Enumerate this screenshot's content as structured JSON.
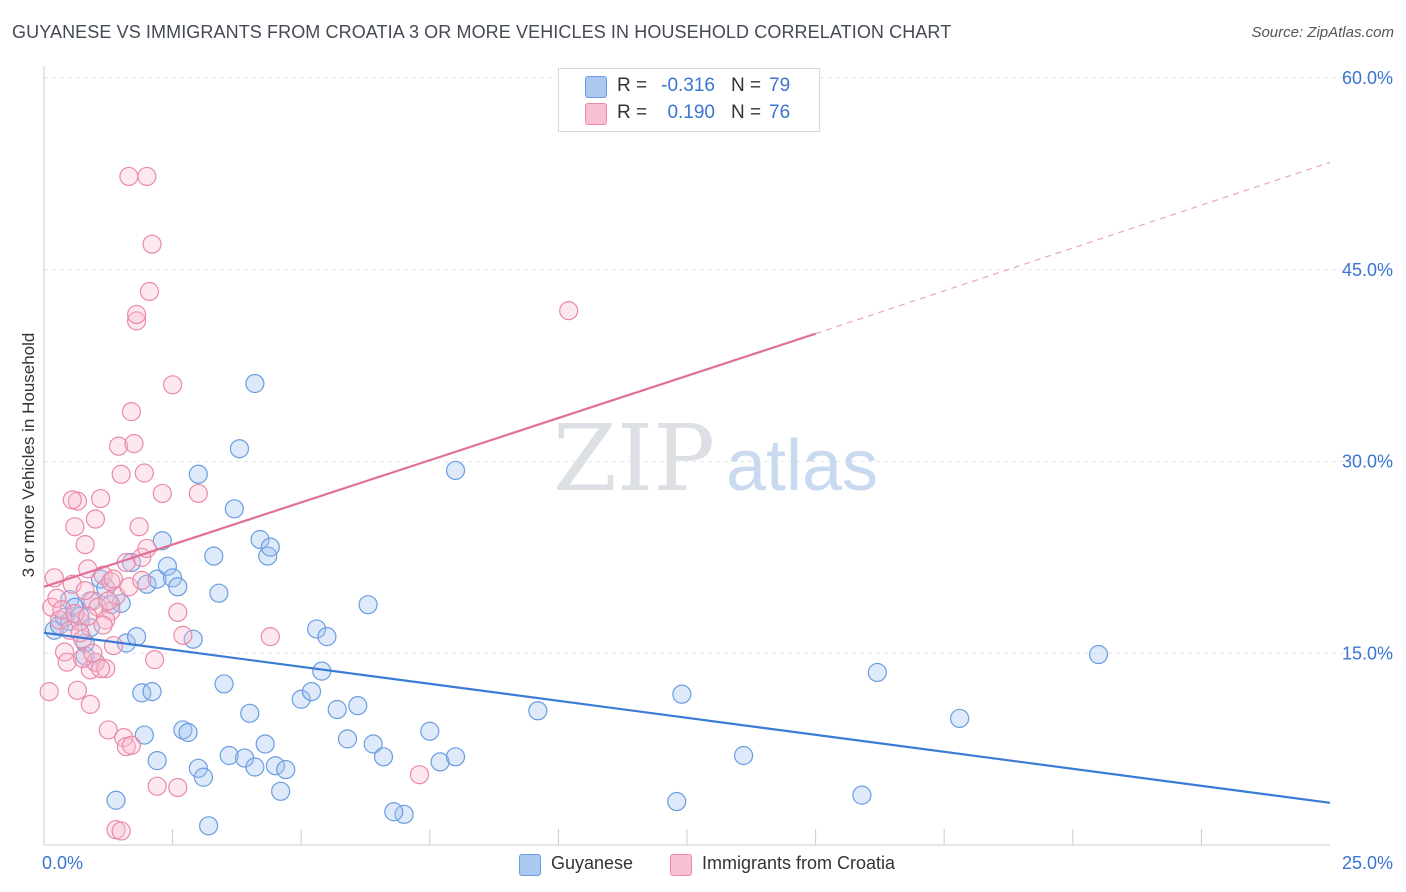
{
  "title": "GUYANESE VS IMMIGRANTS FROM CROATIA 3 OR MORE VEHICLES IN HOUSEHOLD CORRELATION CHART",
  "source": "Source: ZipAtlas.com",
  "watermark": {
    "zip": "ZIP",
    "atlas": "atlas"
  },
  "legend_top": {
    "rows": [
      {
        "r_label": "R =",
        "r_value": "-0.316",
        "n_label": "N =",
        "n_value": "79",
        "color": "#aac8f0",
        "border": "#6a9de0"
      },
      {
        "r_label": "R =",
        "r_value": "0.190",
        "n_label": "N =",
        "n_value": "76",
        "color": "#f8c0d2",
        "border": "#ea8aa8"
      }
    ]
  },
  "legend_bottom": [
    {
      "label": "Guyanese",
      "color": "#aac8f0",
      "border": "#6a9de0"
    },
    {
      "label": "Immigrants from Croatia",
      "color": "#f8c0d2",
      "border": "#ea8aa8"
    }
  ],
  "chart_data": {
    "type": "scatter",
    "title": "GUYANESE VS IMMIGRANTS FROM CROATIA 3 OR MORE VEHICLES IN HOUSEHOLD CORRELATION CHART",
    "xlabel": "",
    "ylabel": "3 or more Vehicles in Household",
    "xlim": [
      0,
      25
    ],
    "ylim": [
      0,
      60
    ],
    "x_tick_labels": [
      {
        "value": 0,
        "label": "0.0%"
      },
      {
        "value": 25,
        "label": "25.0%"
      }
    ],
    "y_tick_labels": [
      {
        "value": 15,
        "label": "15.0%"
      },
      {
        "value": 30,
        "label": "30.0%"
      },
      {
        "value": 45,
        "label": "45.0%"
      },
      {
        "value": 60,
        "label": "60.0%"
      }
    ],
    "x_minor_ticks": [
      2.5,
      5,
      7.5,
      10,
      12.5,
      15,
      17.5,
      20,
      22.5
    ],
    "grid": true,
    "series": [
      {
        "name": "Guyanese",
        "color": "#6a9de0",
        "fill": "rgba(160,195,240,0.35)",
        "trend": {
          "x0": 0,
          "y0": 16.6,
          "x1": 25,
          "y1": 3.3,
          "dashed_to": null
        },
        "points": [
          [
            0.2,
            16.8
          ],
          [
            0.3,
            17.2
          ],
          [
            0.4,
            17.8
          ],
          [
            0.5,
            19.2
          ],
          [
            0.5,
            17.5
          ],
          [
            0.6,
            18.6
          ],
          [
            0.7,
            17.9
          ],
          [
            0.8,
            14.8
          ],
          [
            0.8,
            15.8
          ],
          [
            0.9,
            19.1
          ],
          [
            1.0,
            14.3
          ],
          [
            1.1,
            20.8
          ],
          [
            1.2,
            20.1
          ],
          [
            1.3,
            18.8
          ],
          [
            1.5,
            18.9
          ],
          [
            1.6,
            15.8
          ],
          [
            1.7,
            22.1
          ],
          [
            1.8,
            16.3
          ],
          [
            1.9,
            11.9
          ],
          [
            1.95,
            8.6
          ],
          [
            2.0,
            20.4
          ],
          [
            2.1,
            12.0
          ],
          [
            2.2,
            20.8
          ],
          [
            2.3,
            23.8
          ],
          [
            2.4,
            21.8
          ],
          [
            2.5,
            20.9
          ],
          [
            2.6,
            20.2
          ],
          [
            2.7,
            9.0
          ],
          [
            2.8,
            8.8
          ],
          [
            2.9,
            16.1
          ],
          [
            3.0,
            6.0
          ],
          [
            3.1,
            5.3
          ],
          [
            3.2,
            1.5
          ],
          [
            3.3,
            22.6
          ],
          [
            3.4,
            19.7
          ],
          [
            3.5,
            12.6
          ],
          [
            3.6,
            7.0
          ],
          [
            3.7,
            26.3
          ],
          [
            3.8,
            31.0
          ],
          [
            3.9,
            6.8
          ],
          [
            4.0,
            10.3
          ],
          [
            4.1,
            6.1
          ],
          [
            4.2,
            23.9
          ],
          [
            4.3,
            7.9
          ],
          [
            4.35,
            22.6
          ],
          [
            4.4,
            23.3
          ],
          [
            4.5,
            6.2
          ],
          [
            4.6,
            4.2
          ],
          [
            4.7,
            5.9
          ],
          [
            5.0,
            11.4
          ],
          [
            5.2,
            12.0
          ],
          [
            5.3,
            16.9
          ],
          [
            5.4,
            13.6
          ],
          [
            5.5,
            16.3
          ],
          [
            5.7,
            10.6
          ],
          [
            5.9,
            8.3
          ],
          [
            6.1,
            10.9
          ],
          [
            6.3,
            18.8
          ],
          [
            6.4,
            7.9
          ],
          [
            6.6,
            6.9
          ],
          [
            7.0,
            2.4
          ],
          [
            7.5,
            8.9
          ],
          [
            7.7,
            6.5
          ],
          [
            8.0,
            29.3
          ],
          [
            9.6,
            10.5
          ],
          [
            12.4,
            11.8
          ],
          [
            13.6,
            7.0
          ],
          [
            16.2,
            13.5
          ],
          [
            17.8,
            9.9
          ],
          [
            20.5,
            14.9
          ],
          [
            3.0,
            29.0
          ],
          [
            1.4,
            3.5
          ],
          [
            0.9,
            17.0
          ],
          [
            4.1,
            36.1
          ],
          [
            2.2,
            6.6
          ],
          [
            6.8,
            2.6
          ],
          [
            8.0,
            6.9
          ],
          [
            15.9,
            3.9
          ],
          [
            12.3,
            3.4
          ]
        ]
      },
      {
        "name": "Immigrants from Croatia",
        "color": "#ea8aa8",
        "fill": "rgba(248,190,210,0.35)",
        "trend": {
          "x0": 0,
          "y0": 20.2,
          "x1": 15,
          "y1": 40.0,
          "dashed_to": {
            "x": 25,
            "y": 53.4
          }
        },
        "points": [
          [
            0.1,
            12.0
          ],
          [
            0.15,
            18.6
          ],
          [
            0.2,
            20.9
          ],
          [
            0.25,
            19.3
          ],
          [
            0.3,
            17.6
          ],
          [
            0.35,
            18.4
          ],
          [
            0.4,
            15.1
          ],
          [
            0.45,
            14.3
          ],
          [
            0.5,
            16.8
          ],
          [
            0.55,
            20.4
          ],
          [
            0.6,
            24.9
          ],
          [
            0.65,
            26.9
          ],
          [
            0.7,
            17.5
          ],
          [
            0.75,
            16.1
          ],
          [
            0.8,
            23.5
          ],
          [
            0.85,
            21.6
          ],
          [
            0.9,
            13.7
          ],
          [
            0.95,
            19.1
          ],
          [
            1.0,
            14.3
          ],
          [
            1.05,
            18.6
          ],
          [
            1.1,
            27.1
          ],
          [
            1.15,
            21.1
          ],
          [
            1.2,
            13.8
          ],
          [
            1.25,
            9.0
          ],
          [
            1.3,
            18.3
          ],
          [
            1.35,
            15.6
          ],
          [
            1.4,
            19.5
          ],
          [
            1.45,
            31.2
          ],
          [
            1.5,
            29.0
          ],
          [
            1.55,
            8.4
          ],
          [
            1.6,
            22.1
          ],
          [
            1.65,
            20.2
          ],
          [
            1.7,
            33.9
          ],
          [
            1.75,
            31.4
          ],
          [
            1.8,
            41.0
          ],
          [
            1.85,
            24.9
          ],
          [
            1.9,
            22.5
          ],
          [
            1.95,
            29.1
          ],
          [
            2.0,
            52.3
          ],
          [
            2.05,
            43.3
          ],
          [
            2.1,
            47.0
          ],
          [
            2.15,
            14.5
          ],
          [
            2.2,
            4.6
          ],
          [
            2.3,
            27.5
          ],
          [
            2.5,
            36.0
          ],
          [
            2.6,
            18.2
          ],
          [
            2.7,
            16.4
          ],
          [
            1.4,
            1.2
          ],
          [
            1.5,
            1.1
          ],
          [
            1.6,
            7.7
          ],
          [
            1.65,
            52.3
          ],
          [
            1.8,
            41.5
          ],
          [
            0.9,
            11.0
          ],
          [
            1.0,
            25.5
          ],
          [
            1.1,
            13.8
          ],
          [
            1.2,
            17.6
          ],
          [
            1.3,
            20.6
          ],
          [
            0.6,
            18.1
          ],
          [
            0.7,
            16.6
          ],
          [
            0.8,
            19.9
          ],
          [
            1.9,
            20.7
          ],
          [
            2.0,
            23.2
          ],
          [
            0.55,
            27.0
          ],
          [
            0.65,
            12.1
          ],
          [
            0.75,
            14.6
          ],
          [
            0.85,
            17.9
          ],
          [
            0.95,
            15.0
          ],
          [
            1.15,
            17.2
          ],
          [
            1.25,
            19.1
          ],
          [
            1.35,
            20.8
          ],
          [
            4.4,
            16.3
          ],
          [
            7.3,
            5.5
          ],
          [
            10.2,
            41.8
          ],
          [
            3.0,
            27.5
          ],
          [
            1.7,
            7.8
          ],
          [
            2.6,
            4.5
          ]
        ]
      }
    ]
  },
  "colors": {
    "axis_text": "#3b74d1",
    "grid": "#e4e6ea",
    "axis": "#c9ccd2"
  }
}
